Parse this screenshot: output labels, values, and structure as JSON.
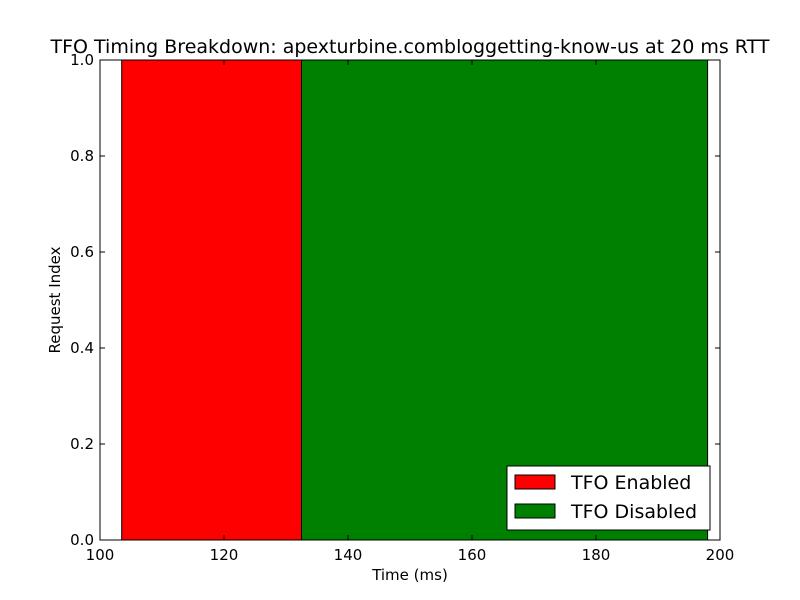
{
  "chart_data": {
    "type": "bar",
    "orientation": "horizontal-span",
    "title": "TFO Timing Breakdown: apexturbine.combloggetting-know-us at 20 ms RTT",
    "xlabel": "Time (ms)",
    "ylabel": "Request Index",
    "xlim": [
      100,
      200
    ],
    "ylim": [
      0,
      1
    ],
    "xticks": [
      100,
      120,
      140,
      160,
      180,
      200
    ],
    "yticks": [
      0.0,
      0.2,
      0.4,
      0.6,
      0.8,
      1.0
    ],
    "xtick_labels": [
      "100",
      "120",
      "140",
      "160",
      "180",
      "200"
    ],
    "ytick_labels": [
      "0.0",
      "0.2",
      "0.4",
      "0.6",
      "0.8",
      "1.0"
    ],
    "grid": false,
    "legend_position": "bottom-right",
    "series": [
      {
        "name": "TFO Enabled",
        "color": "#ff0000",
        "x_start": 103.5,
        "x_end": 132.5,
        "y_start": 0,
        "y_end": 1
      },
      {
        "name": "TFO Disabled",
        "color": "#008000",
        "x_start": 132.5,
        "x_end": 198,
        "y_start": 0,
        "y_end": 1
      }
    ]
  }
}
